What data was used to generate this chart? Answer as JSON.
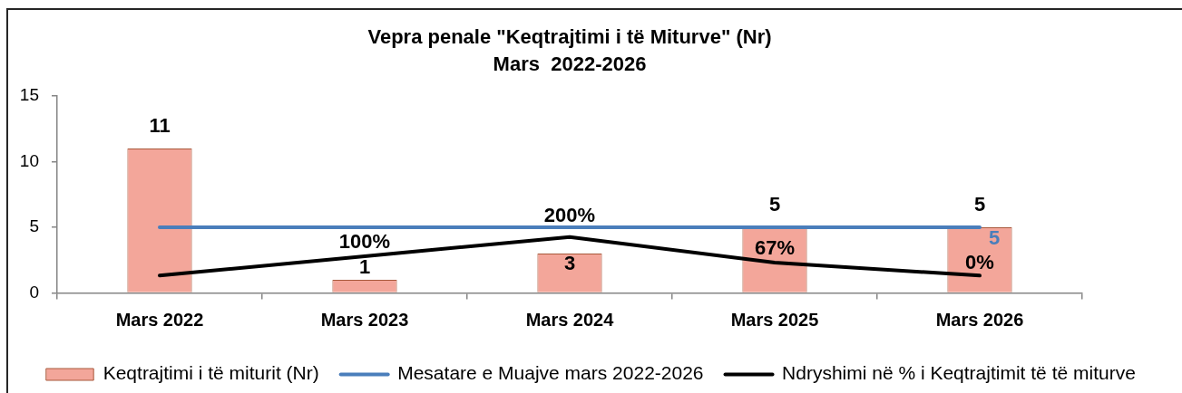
{
  "chart_data": {
    "type": "bar",
    "title": "Vepra penale \"Keqtrajtimi i të Miturve\" (Nr)",
    "subtitle": "Mars  2022-2026",
    "categories": [
      "Mars 2022",
      "Mars 2023",
      "Mars 2024",
      "Mars 2025",
      "Mars 2026"
    ],
    "series": [
      {
        "name": "Keqtrajtimi i të miturit (Nr)",
        "type": "bar",
        "color": "#f3a69a",
        "values": [
          11,
          1,
          3,
          5,
          5
        ],
        "value_labels": [
          "11",
          "1",
          "3",
          "5",
          "5"
        ]
      },
      {
        "name": "Mesatare e Muajve mars 2022-2026",
        "type": "line",
        "color": "#4a7ebb",
        "values": [
          5,
          5,
          5,
          5,
          5
        ],
        "value_labels": [
          null,
          null,
          null,
          null,
          "5"
        ]
      },
      {
        "name": "Ndryshimi në % i Keqtrajtimit të të miturve",
        "type": "line",
        "color": "#000000",
        "axis": "y2",
        "values": [
          0,
          100,
          200,
          67,
          0
        ],
        "value_labels": [
          null,
          "100%",
          "200%",
          "67%",
          "0%"
        ]
      }
    ],
    "ylim": [
      0,
      15
    ],
    "yticks": [
      0,
      5,
      10,
      15
    ],
    "y2lim": [
      -90,
      930
    ],
    "legend": "bottom"
  }
}
